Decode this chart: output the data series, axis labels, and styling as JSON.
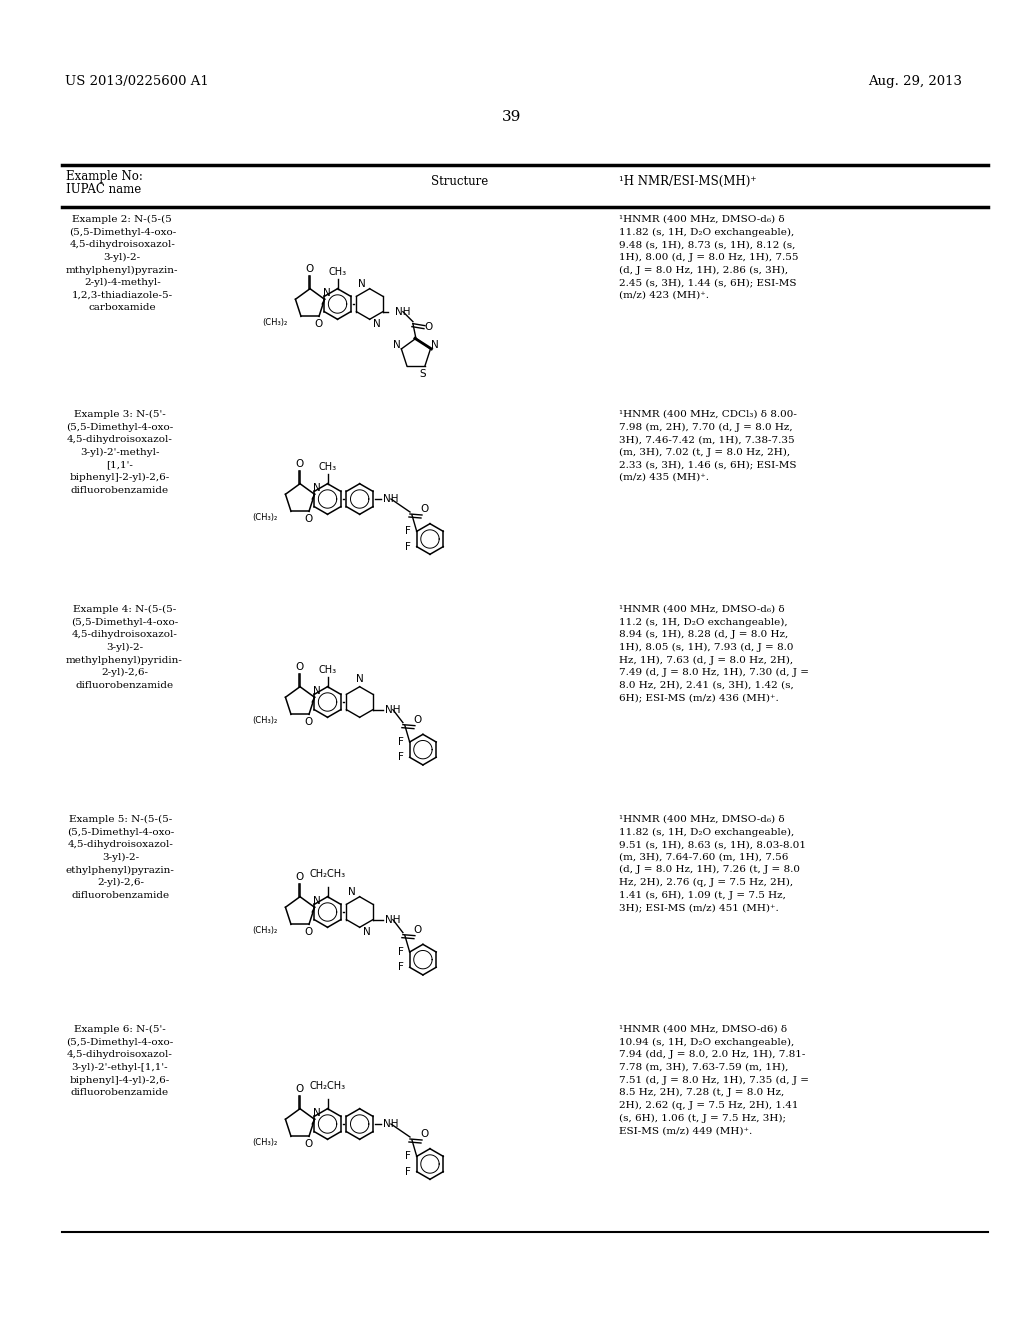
{
  "header_left": "US 2013/0225600 A1",
  "header_right": "Aug. 29, 2013",
  "page_number": "39",
  "col1_header": "Example No:\nIUPAC name",
  "col2_header": "Structure",
  "col3_header": "¹H NMR/ESI-MS(MH)⁺",
  "background": "#ffffff",
  "text_color": "#000000",
  "rows": [
    {
      "example": "Example 2: N-(5-(5\n(5,5-Dimethyl-4-oxo-\n4,5-dihydroisoxazol-\n3-yl)-2-\nmthylphenyl)pyrazin-\n2-yl)-4-methyl-\n1,2,3-thiadiazole-5-\ncarboxamide",
      "nmr": "¹HNMR (400 MHz, DMSO-d₆) δ\n11.82 (s, 1H, D₂O exchangeable),\n9.48 (s, 1H), 8.73 (s, 1H), 8.12 (s,\n1H), 8.00 (d, J = 8.0 Hz, 1H), 7.55\n(d, J = 8.0 Hz, 1H), 2.86 (s, 3H),\n2.45 (s, 3H), 1.44 (s, 6H); ESI-MS\n(m/z) 423 (MH)⁺."
    },
    {
      "example": "Example 3: N-(5'-\n(5,5-Dimethyl-4-oxo-\n4,5-dihydroisoxazol-\n3-yl)-2'-methyl-\n[1,1'-\nbiphenyl]-2-yl)-2,6-\ndifluorobenzamide",
      "nmr": "¹HNMR (400 MHz, CDCl₃) δ 8.00-\n7.98 (m, 2H), 7.70 (d, J = 8.0 Hz,\n3H), 7.46-7.42 (m, 1H), 7.38-7.35\n(m, 3H), 7.02 (t, J = 8.0 Hz, 2H),\n2.33 (s, 3H), 1.46 (s, 6H); ESI-MS\n(m/z) 435 (MH)⁺."
    },
    {
      "example": "Example 4: N-(5-(5-\n(5,5-Dimethyl-4-oxo-\n4,5-dihydroisoxazol-\n3-yl)-2-\nmethylphenyl)pyridin-\n2-yl)-2,6-\ndifluorobenzamide",
      "nmr": "¹HNMR (400 MHz, DMSO-d₆) δ\n11.2 (s, 1H, D₂O exchangeable),\n8.94 (s, 1H), 8.28 (d, J = 8.0 Hz,\n1H), 8.05 (s, 1H), 7.93 (d, J = 8.0\nHz, 1H), 7.63 (d, J = 8.0 Hz, 2H),\n7.49 (d, J = 8.0 Hz, 1H), 7.30 (d, J =\n8.0 Hz, 2H), 2.41 (s, 3H), 1.42 (s,\n6H); ESI-MS (m/z) 436 (MH)⁺."
    },
    {
      "example": "Example 5: N-(5-(5-\n(5,5-Dimethyl-4-oxo-\n4,5-dihydroisoxazol-\n3-yl)-2-\nethylphenyl)pyrazin-\n2-yl)-2,6-\ndifluorobenzamide",
      "nmr": "¹HNMR (400 MHz, DMSO-d₆) δ\n11.82 (s, 1H, D₂O exchangeable),\n9.51 (s, 1H), 8.63 (s, 1H), 8.03-8.01\n(m, 3H), 7.64-7.60 (m, 1H), 7.56\n(d, J = 8.0 Hz, 1H), 7.26 (t, J = 8.0\nHz, 2H), 2.76 (q, J = 7.5 Hz, 2H),\n1.41 (s, 6H), 1.09 (t, J = 7.5 Hz,\n3H); ESI-MS (m/z) 451 (MH)⁺."
    },
    {
      "example": "Example 6: N-(5'-\n(5,5-Dimethyl-4-oxo-\n4,5-dihydroisoxazol-\n3-yl)-2'-ethyl-[1,1'-\nbiphenyl]-4-yl)-2,6-\ndifluorobenzamide",
      "nmr": "¹HNMR (400 MHz, DMSO-d6) δ\n10.94 (s, 1H, D₂O exchangeable),\n7.94 (dd, J = 8.0, 2.0 Hz, 1H), 7.81-\n7.78 (m, 3H), 7.63-7.59 (m, 1H),\n7.51 (d, J = 8.0 Hz, 1H), 7.35 (d, J =\n8.5 Hz, 2H), 7.28 (t, J = 8.0 Hz,\n2H), 2.62 (q, J = 7.5 Hz, 2H), 1.41\n(s, 6H), 1.06 (t, J = 7.5 Hz, 3H);\nESI-MS (m/z) 449 (MH)⁺."
    }
  ]
}
